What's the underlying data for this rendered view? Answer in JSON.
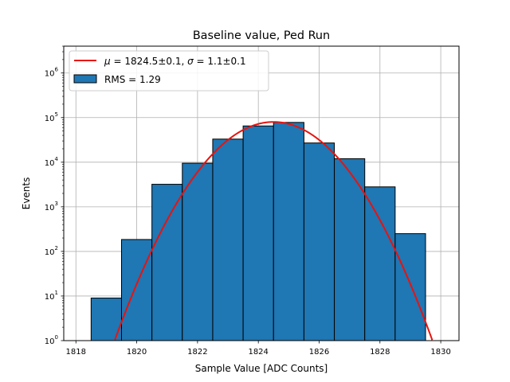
{
  "chart_data": {
    "type": "bar",
    "title": "Baseline value, Ped Run",
    "xlabel": "Sample Value [ADC Counts]",
    "ylabel": "Events",
    "xlim": [
      1817.6,
      1830.6
    ],
    "ylim": [
      1,
      4000000
    ],
    "yscale": "log",
    "grid": true,
    "legend_position": "top-left",
    "x_ticks": [
      {
        "value": 1818,
        "label": "1818"
      },
      {
        "value": 1820,
        "label": "1820"
      },
      {
        "value": 1822,
        "label": "1822"
      },
      {
        "value": 1824,
        "label": "1824"
      },
      {
        "value": 1826,
        "label": "1826"
      },
      {
        "value": 1828,
        "label": "1828"
      },
      {
        "value": 1830,
        "label": "1830"
      }
    ],
    "y_ticks": [
      {
        "value": 1,
        "base": "10",
        "exp": "0"
      },
      {
        "value": 10,
        "base": "10",
        "exp": "1"
      },
      {
        "value": 100,
        "base": "10",
        "exp": "2"
      },
      {
        "value": 1000,
        "base": "10",
        "exp": "3"
      },
      {
        "value": 10000,
        "base": "10",
        "exp": "4"
      },
      {
        "value": 100000,
        "base": "10",
        "exp": "5"
      },
      {
        "value": 1000000,
        "base": "10",
        "exp": "6"
      }
    ],
    "histogram": {
      "name": "RMS = 1.29",
      "color": "#1f77b4",
      "edge_color": "#000000",
      "bin_edges": [
        1818.5,
        1819.5,
        1820.5,
        1821.5,
        1822.5,
        1823.5,
        1824.5,
        1825.5,
        1826.5,
        1827.5,
        1828.5,
        1829.5
      ],
      "counts": [
        9,
        185,
        3200,
        9500,
        33000,
        65000,
        78000,
        27000,
        12000,
        2800,
        250
      ]
    },
    "fit": {
      "name_parts": {
        "mu_sym": "μ",
        "mu_val": " = 1824.5±0.1, ",
        "sigma_sym": "σ",
        "sigma_val": " = 1.1±0.1"
      },
      "type": "gaussian",
      "color": "#e8130f",
      "amplitude": 80000,
      "mean": 1824.5,
      "sigma": 1.1
    }
  }
}
